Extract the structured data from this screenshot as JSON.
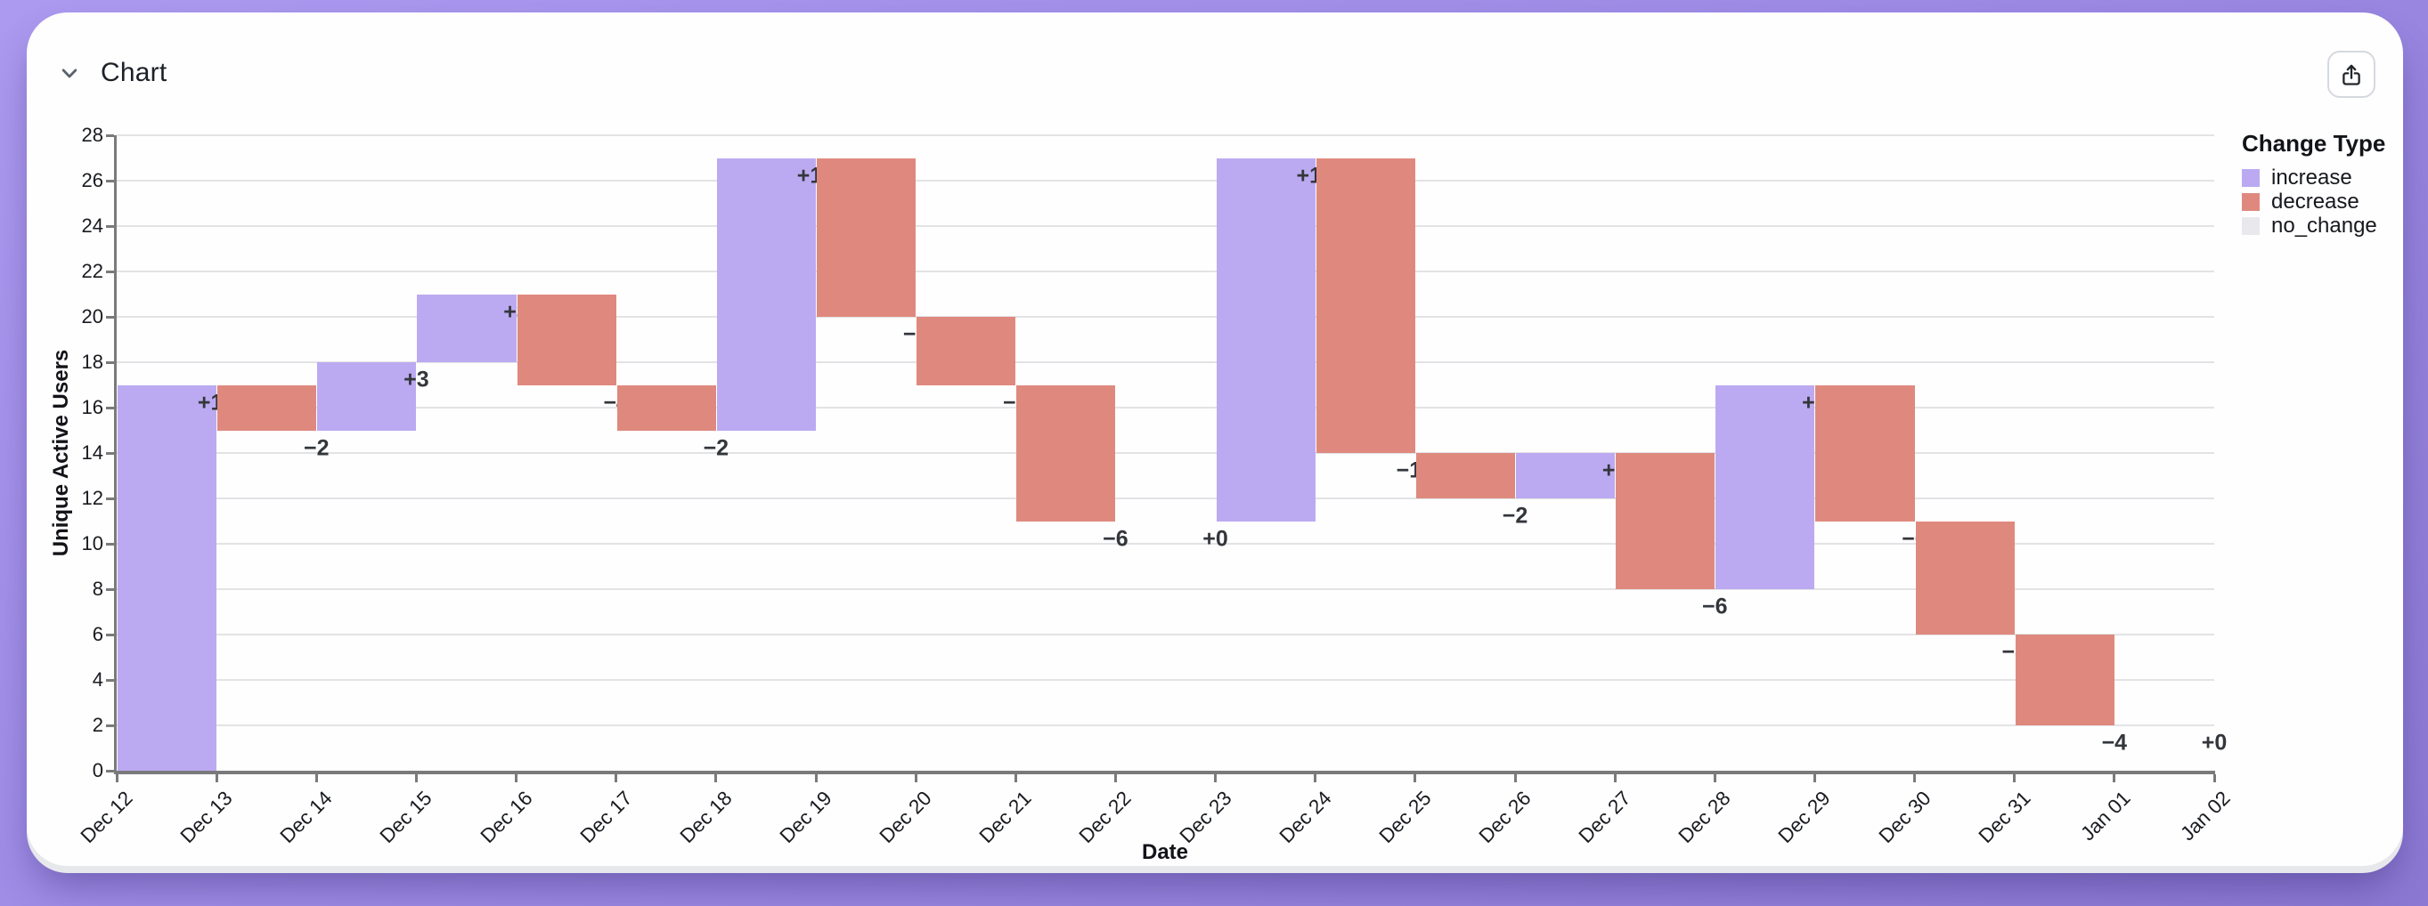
{
  "header": {
    "title": "Chart"
  },
  "chart_data": {
    "type": "bar",
    "variant": "waterfall",
    "xlabel": "Date",
    "ylabel": "Unique Active Users",
    "ylim": [
      0,
      28
    ],
    "ytick_step": 2,
    "grid": "horizontal-only",
    "x_ticks": [
      "Dec 12",
      "Dec 13",
      "Dec 14",
      "Dec 15",
      "Dec 16",
      "Dec 17",
      "Dec 18",
      "Dec 19",
      "Dec 20",
      "Dec 21",
      "Dec 22",
      "Dec 23",
      "Dec 24",
      "Dec 25",
      "Dec 26",
      "Dec 27",
      "Dec 28",
      "Dec 29",
      "Dec 30",
      "Dec 31",
      "Jan 01",
      "Jan 02"
    ],
    "colors": {
      "increase": "#bbaaf1",
      "decrease": "#df897e",
      "no_change": "#e9e8ec"
    },
    "legend": {
      "title": "Change Type",
      "position": "top-right",
      "entries": [
        {
          "label": "increase",
          "type": "increase"
        },
        {
          "label": "decrease",
          "type": "decrease"
        },
        {
          "label": "no_change",
          "type": "no_change"
        }
      ]
    },
    "bars": [
      {
        "date": "Dec 12",
        "change": 17,
        "label": "+17",
        "start": 0,
        "end": 17,
        "type": "increase"
      },
      {
        "date": "Dec 13",
        "change": -2,
        "label": "−2",
        "start": 17,
        "end": 15,
        "type": "decrease"
      },
      {
        "date": "Dec 14",
        "change": 3,
        "label": "+3",
        "start": 15,
        "end": 18,
        "type": "increase"
      },
      {
        "date": "Dec 15",
        "change": 3,
        "label": "+3",
        "start": 18,
        "end": 21,
        "type": "increase"
      },
      {
        "date": "Dec 16",
        "change": -4,
        "label": "−4",
        "start": 21,
        "end": 17,
        "type": "decrease"
      },
      {
        "date": "Dec 17",
        "change": -2,
        "label": "−2",
        "start": 17,
        "end": 15,
        "type": "decrease"
      },
      {
        "date": "Dec 18",
        "change": 12,
        "label": "+12",
        "start": 15,
        "end": 27,
        "type": "increase"
      },
      {
        "date": "Dec 19",
        "change": -7,
        "label": "−7",
        "start": 27,
        "end": 20,
        "type": "decrease"
      },
      {
        "date": "Dec 20",
        "change": -3,
        "label": "−3",
        "start": 20,
        "end": 17,
        "type": "decrease"
      },
      {
        "date": "Dec 21",
        "change": -6,
        "label": "−6",
        "start": 17,
        "end": 11,
        "type": "decrease"
      },
      {
        "date": "Dec 22",
        "change": 0,
        "label": "+0",
        "start": 11,
        "end": 11,
        "type": "no_change"
      },
      {
        "date": "Dec 23",
        "change": 16,
        "label": "+16",
        "start": 11,
        "end": 27,
        "type": "increase"
      },
      {
        "date": "Dec 24",
        "change": -13,
        "label": "−13",
        "start": 27,
        "end": 14,
        "type": "decrease"
      },
      {
        "date": "Dec 25",
        "change": -2,
        "label": "−2",
        "start": 14,
        "end": 12,
        "type": "decrease"
      },
      {
        "date": "Dec 26",
        "change": 2,
        "label": "+2",
        "start": 12,
        "end": 14,
        "type": "increase"
      },
      {
        "date": "Dec 27",
        "change": -6,
        "label": "−6",
        "start": 14,
        "end": 8,
        "type": "decrease"
      },
      {
        "date": "Dec 28",
        "change": 9,
        "label": "+9",
        "start": 8,
        "end": 17,
        "type": "increase"
      },
      {
        "date": "Dec 29",
        "change": -6,
        "label": "−6",
        "start": 17,
        "end": 11,
        "type": "decrease"
      },
      {
        "date": "Dec 30",
        "change": -5,
        "label": "−5",
        "start": 11,
        "end": 6,
        "type": "decrease"
      },
      {
        "date": "Dec 31",
        "change": -4,
        "label": "−4",
        "start": 6,
        "end": 2,
        "type": "decrease"
      },
      {
        "date": "Jan 01",
        "change": 0,
        "label": "+0",
        "start": 2,
        "end": 2,
        "type": "no_change"
      }
    ]
  }
}
